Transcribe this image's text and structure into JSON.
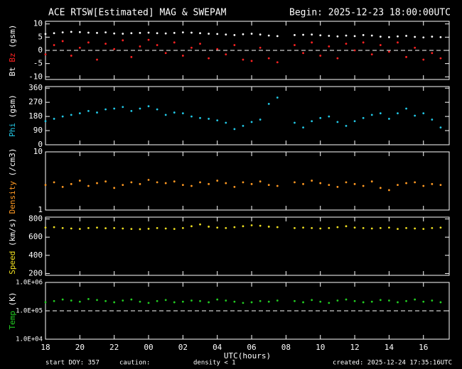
{
  "header": {
    "title": "ACE RTSW[Estimated] MAG & SWEPAM",
    "begin": "Begin: 2025-12-23 18:00:00UTC"
  },
  "footer": {
    "start": "start DOY: 357",
    "caution": "caution:",
    "density_note": "density < 1",
    "density_note_color": "#ff9922",
    "created": "created: 2025-12-24 17:35:16UTC"
  },
  "chart_data": [
    {
      "type": "scatter",
      "ylabel": [
        {
          "text": "Bt",
          "color": "#ffffff"
        },
        {
          "text": "Bz",
          "color": "#ff2222"
        },
        {
          "text": "(gsm)",
          "color": "#ffffff"
        }
      ],
      "xlim": [
        18,
        41.5
      ],
      "xticks": [
        18,
        20,
        22,
        {
          "value": 24,
          "label": "00"
        },
        {
          "value": 26,
          "label": "02"
        },
        {
          "value": 28,
          "label": "04"
        },
        {
          "value": 30,
          "label": "06"
        },
        {
          "value": 32,
          "label": "08"
        },
        {
          "value": 34,
          "label": "10"
        },
        {
          "value": 36,
          "label": "12"
        },
        {
          "value": 38,
          "label": "14"
        },
        {
          "value": 40,
          "label": "16"
        }
      ],
      "ylim": [
        -11,
        11
      ],
      "yticks": [
        -10,
        -5,
        0,
        5,
        10
      ],
      "refline": 0,
      "x": [
        18,
        18.5,
        19,
        19.5,
        20,
        20.5,
        21,
        21.5,
        22,
        22.5,
        23,
        23.5,
        24,
        24.5,
        25,
        25.5,
        26,
        26.5,
        27,
        27.5,
        28,
        28.5,
        29,
        29.5,
        30,
        30.5,
        31,
        31.5,
        32,
        32.5,
        33,
        33.5,
        34,
        34.5,
        35,
        35.5,
        36,
        36.5,
        37,
        37.5,
        38,
        38.5,
        39,
        39.5,
        40,
        40.5,
        41
      ],
      "series": [
        {
          "name": "Bt",
          "color": "#ffffff",
          "values": [
            6.2,
            6.5,
            6.8,
            7.0,
            6.9,
            6.7,
            6.6,
            6.8,
            6.4,
            6.3,
            6.5,
            6.6,
            6.7,
            6.5,
            6.4,
            6.6,
            6.8,
            6.7,
            6.5,
            6.3,
            6.2,
            6.0,
            5.8,
            6.1,
            6.3,
            6.0,
            5.6,
            5.4,
            null,
            5.8,
            5.9,
            6.0,
            5.7,
            5.5,
            5.3,
            5.6,
            5.4,
            5.8,
            5.6,
            5.2,
            5.0,
            5.3,
            5.5,
            5.1,
            4.9,
            5.2,
            5.0
          ]
        },
        {
          "name": "Bz",
          "color": "#ff2222",
          "values": [
            -1.5,
            2.0,
            3.5,
            -2.0,
            1.0,
            3.0,
            -3.5,
            2.5,
            0.5,
            3.8,
            -2.5,
            1.5,
            4.0,
            2.0,
            -1.0,
            3.0,
            -2.0,
            1.0,
            2.5,
            -3.0,
            0.5,
            -1.5,
            2.0,
            -3.5,
            -4.0,
            1.0,
            -3.0,
            -4.5,
            null,
            2.0,
            -1.0,
            3.0,
            -2.0,
            1.5,
            -3.0,
            2.5,
            0.0,
            3.0,
            -1.5,
            2.0,
            -0.5,
            3.0,
            -2.5,
            1.0,
            -3.5,
            -1.0,
            -3.0
          ]
        }
      ]
    },
    {
      "type": "scatter",
      "ylabel": [
        {
          "text": "Phi",
          "color": "#22c8e6"
        },
        {
          "text": "(gsm)",
          "color": "#ffffff"
        }
      ],
      "xlim": [
        18,
        41.5
      ],
      "xticks": [
        18,
        20,
        22,
        {
          "value": 24,
          "label": "00"
        },
        {
          "value": 26,
          "label": "02"
        },
        {
          "value": 28,
          "label": "04"
        },
        {
          "value": 30,
          "label": "06"
        },
        {
          "value": 32,
          "label": "08"
        },
        {
          "value": 34,
          "label": "10"
        },
        {
          "value": 36,
          "label": "12"
        },
        {
          "value": 38,
          "label": "14"
        },
        {
          "value": 40,
          "label": "16"
        }
      ],
      "ylim": [
        0,
        370
      ],
      "yticks": [
        0,
        90,
        180,
        270,
        360
      ],
      "x": [
        18,
        18.5,
        19,
        19.5,
        20,
        20.5,
        21,
        21.5,
        22,
        22.5,
        23,
        23.5,
        24,
        24.5,
        25,
        25.5,
        26,
        26.5,
        27,
        27.5,
        28,
        28.5,
        29,
        29.5,
        30,
        30.5,
        31,
        31.5,
        32,
        32.5,
        33,
        33.5,
        34,
        34.5,
        35,
        35.5,
        36,
        36.5,
        37,
        37.5,
        38,
        38.5,
        39,
        39.5,
        40,
        40.5,
        41
      ],
      "series": [
        {
          "name": "Phi",
          "color": "#22c8e6",
          "values": [
            150,
            165,
            180,
            190,
            200,
            215,
            205,
            225,
            230,
            240,
            215,
            230,
            245,
            225,
            190,
            205,
            200,
            180,
            170,
            165,
            155,
            140,
            100,
            120,
            145,
            160,
            260,
            300,
            null,
            140,
            110,
            150,
            170,
            180,
            145,
            120,
            150,
            170,
            190,
            200,
            165,
            200,
            230,
            185,
            200,
            160,
            110
          ]
        }
      ]
    },
    {
      "type": "scatter",
      "ylabel": [
        {
          "text": "Density",
          "color": "#ff9922"
        },
        {
          "text": "(/cm3)",
          "color": "#ffffff"
        }
      ],
      "xlim": [
        18,
        41.5
      ],
      "xticks": [
        18,
        20,
        22,
        {
          "value": 24,
          "label": "00"
        },
        {
          "value": 26,
          "label": "02"
        },
        {
          "value": 28,
          "label": "04"
        },
        {
          "value": 30,
          "label": "06"
        },
        {
          "value": 32,
          "label": "08"
        },
        {
          "value": 34,
          "label": "10"
        },
        {
          "value": 36,
          "label": "12"
        },
        {
          "value": 38,
          "label": "14"
        },
        {
          "value": 40,
          "label": "16"
        }
      ],
      "ylim": [
        1,
        10
      ],
      "yticks": [
        1,
        10
      ],
      "log_scale": true,
      "x": [
        18,
        18.5,
        19,
        19.5,
        20,
        20.5,
        21,
        21.5,
        22,
        22.5,
        23,
        23.5,
        24,
        24.5,
        25,
        25.5,
        26,
        26.5,
        27,
        27.5,
        28,
        28.5,
        29,
        29.5,
        30,
        30.5,
        31,
        31.5,
        32,
        32.5,
        33,
        33.5,
        34,
        34.5,
        35,
        35.5,
        36,
        36.5,
        37,
        37.5,
        38,
        38.5,
        39,
        39.5,
        40,
        40.5,
        41
      ],
      "series": [
        {
          "name": "Density",
          "color": "#ff9922",
          "values": [
            2.7,
            3.0,
            2.5,
            2.8,
            3.2,
            2.6,
            2.9,
            3.1,
            2.4,
            2.7,
            3.0,
            2.8,
            3.3,
            3.0,
            2.9,
            3.1,
            2.7,
            2.6,
            3.0,
            2.8,
            3.2,
            2.9,
            2.5,
            3.0,
            2.8,
            3.1,
            2.7,
            2.6,
            null,
            3.0,
            2.8,
            3.2,
            2.9,
            2.7,
            2.5,
            3.0,
            2.8,
            2.6,
            3.1,
            2.4,
            2.2,
            2.7,
            2.9,
            3.0,
            2.6,
            2.8,
            2.7
          ]
        }
      ]
    },
    {
      "type": "scatter",
      "ylabel": [
        {
          "text": "Speed",
          "color": "#f0e020"
        },
        {
          "text": "(km/s)",
          "color": "#ffffff"
        }
      ],
      "xlim": [
        18,
        41.5
      ],
      "xticks": [
        18,
        20,
        22,
        {
          "value": 24,
          "label": "00"
        },
        {
          "value": 26,
          "label": "02"
        },
        {
          "value": 28,
          "label": "04"
        },
        {
          "value": 30,
          "label": "06"
        },
        {
          "value": 32,
          "label": "08"
        },
        {
          "value": 34,
          "label": "10"
        },
        {
          "value": 36,
          "label": "12"
        },
        {
          "value": 38,
          "label": "14"
        },
        {
          "value": 40,
          "label": "16"
        }
      ],
      "ylim": [
        180,
        820
      ],
      "yticks": [
        200,
        400,
        600,
        800
      ],
      "x": [
        18,
        18.5,
        19,
        19.5,
        20,
        20.5,
        21,
        21.5,
        22,
        22.5,
        23,
        23.5,
        24,
        24.5,
        25,
        25.5,
        26,
        26.5,
        27,
        27.5,
        28,
        28.5,
        29,
        29.5,
        30,
        30.5,
        31,
        31.5,
        32,
        32.5,
        33,
        33.5,
        34,
        34.5,
        35,
        35.5,
        36,
        36.5,
        37,
        37.5,
        38,
        38.5,
        39,
        39.5,
        40,
        40.5,
        41
      ],
      "series": [
        {
          "name": "Speed",
          "color": "#f0e020",
          "values": [
            705,
            710,
            700,
            695,
            690,
            700,
            705,
            698,
            700,
            695,
            690,
            688,
            692,
            700,
            695,
            690,
            700,
            720,
            740,
            715,
            705,
            700,
            710,
            720,
            730,
            725,
            715,
            710,
            null,
            700,
            705,
            700,
            695,
            700,
            710,
            720,
            705,
            700,
            695,
            700,
            705,
            690,
            700,
            695,
            690,
            700,
            705
          ]
        }
      ]
    },
    {
      "type": "scatter",
      "ylabel": [
        {
          "text": "Temp",
          "color": "#22cc22"
        },
        {
          "text": "(K)",
          "color": "#ffffff"
        }
      ],
      "xlim": [
        18,
        41.5
      ],
      "xticks": [
        18,
        20,
        22,
        {
          "value": 24,
          "label": "00"
        },
        {
          "value": 26,
          "label": "02"
        },
        {
          "value": 28,
          "label": "04"
        },
        {
          "value": 30,
          "label": "06"
        },
        {
          "value": 32,
          "label": "08"
        },
        {
          "value": 34,
          "label": "10"
        },
        {
          "value": 36,
          "label": "12"
        },
        {
          "value": 38,
          "label": "14"
        },
        {
          "value": 40,
          "label": "16"
        }
      ],
      "xlabel": "UTC(hours)",
      "ylim": [
        10000,
        1000000
      ],
      "yticks": [
        {
          "value": 10000,
          "label": "1.0E+04"
        },
        {
          "value": 100000,
          "label": "1.0E+05"
        },
        {
          "value": 1000000,
          "label": "1.0E+06"
        }
      ],
      "log_scale": true,
      "refline": 100000,
      "x": [
        18,
        18.5,
        19,
        19.5,
        20,
        20.5,
        21,
        21.5,
        22,
        22.5,
        23,
        23.5,
        24,
        24.5,
        25,
        25.5,
        26,
        26.5,
        27,
        27.5,
        28,
        28.5,
        29,
        29.5,
        30,
        30.5,
        31,
        31.5,
        32,
        32.5,
        33,
        33.5,
        34,
        34.5,
        35,
        35.5,
        36,
        36.5,
        37,
        37.5,
        38,
        38.5,
        39,
        39.5,
        40,
        40.5,
        41
      ],
      "series": [
        {
          "name": "Temp",
          "color": "#22cc22",
          "values": [
            200000,
            220000,
            250000,
            230000,
            210000,
            260000,
            240000,
            220000,
            200000,
            230000,
            250000,
            210000,
            190000,
            220000,
            240000,
            200000,
            210000,
            230000,
            220000,
            200000,
            250000,
            230000,
            210000,
            190000,
            200000,
            220000,
            210000,
            230000,
            null,
            220000,
            200000,
            240000,
            210000,
            190000,
            230000,
            250000,
            220000,
            200000,
            210000,
            240000,
            230000,
            200000,
            220000,
            250000,
            210000,
            230000,
            200000
          ]
        }
      ]
    }
  ]
}
